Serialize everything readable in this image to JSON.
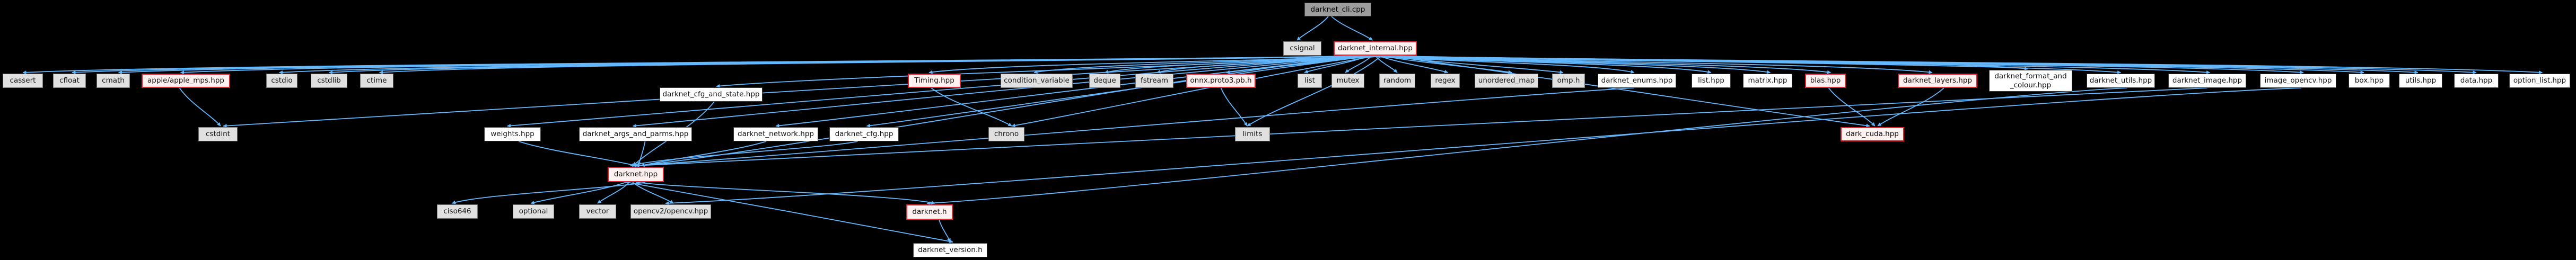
{
  "diagram": {
    "kind": "include-dependency-graph",
    "edge_color": "#63B8FF",
    "node_fill_gray": "#e0e0e0",
    "node_fill_white": "#ffffff",
    "node_fill_red": "#fff1f0",
    "node_border_red": "#e3212c",
    "title_fill": "#9c9c9c",
    "nodes": [
      {
        "label": "darknet_cli.cpp"
      },
      {
        "label": "csignal"
      },
      {
        "label": "darknet_internal.hpp"
      },
      {
        "label": "cassert"
      },
      {
        "label": "cfloat"
      },
      {
        "label": "cmath"
      },
      {
        "label": "apple/apple_mps.hpp"
      },
      {
        "label": "cstdio"
      },
      {
        "label": "cstdlib"
      },
      {
        "label": "ctime"
      },
      {
        "label": "darknet_cfg_and_state.hpp"
      },
      {
        "label": "Timing.hpp"
      },
      {
        "label": "condition_variable"
      },
      {
        "label": "deque"
      },
      {
        "label": "fstream"
      },
      {
        "label": "onnx.proto3.pb.h"
      },
      {
        "label": "list"
      },
      {
        "label": "mutex"
      },
      {
        "label": "random"
      },
      {
        "label": "regex"
      },
      {
        "label": "unordered_map"
      },
      {
        "label": "omp.h"
      },
      {
        "label": "darknet_enums.hpp"
      },
      {
        "label": "list.hpp"
      },
      {
        "label": "matrix.hpp"
      },
      {
        "label": "blas.hpp"
      },
      {
        "label": "darknet_layers.hpp"
      },
      {
        "label": "darknet_format_and\n_colour.hpp"
      },
      {
        "label": "darknet_utils.hpp"
      },
      {
        "label": "darknet_image.hpp"
      },
      {
        "label": "image_opencv.hpp"
      },
      {
        "label": "box.hpp"
      },
      {
        "label": "utils.hpp"
      },
      {
        "label": "data.hpp"
      },
      {
        "label": "option_list.hpp"
      },
      {
        "label": "cstdint"
      },
      {
        "label": "weights.hpp"
      },
      {
        "label": "darknet_args_and_parms.hpp"
      },
      {
        "label": "darknet_network.hpp"
      },
      {
        "label": "darknet_cfg.hpp"
      },
      {
        "label": "chrono"
      },
      {
        "label": "limits"
      },
      {
        "label": "dark_cuda.hpp"
      },
      {
        "label": "darknet.hpp"
      },
      {
        "label": "ciso646"
      },
      {
        "label": "optional"
      },
      {
        "label": "vector"
      },
      {
        "label": "opencv2/opencv.hpp"
      },
      {
        "label": "darknet.h"
      },
      {
        "label": "darknet_version.h"
      }
    ],
    "edges": [
      [
        0,
        1
      ],
      [
        0,
        2
      ],
      [
        2,
        3
      ],
      [
        2,
        4
      ],
      [
        2,
        5
      ],
      [
        2,
        6
      ],
      [
        2,
        7
      ],
      [
        2,
        8
      ],
      [
        2,
        9
      ],
      [
        2,
        10
      ],
      [
        2,
        11
      ],
      [
        2,
        12
      ],
      [
        2,
        13
      ],
      [
        2,
        14
      ],
      [
        2,
        15
      ],
      [
        2,
        16
      ],
      [
        2,
        17
      ],
      [
        2,
        18
      ],
      [
        2,
        19
      ],
      [
        2,
        20
      ],
      [
        2,
        21
      ],
      [
        2,
        22
      ],
      [
        2,
        23
      ],
      [
        2,
        24
      ],
      [
        2,
        25
      ],
      [
        2,
        26
      ],
      [
        2,
        27
      ],
      [
        2,
        28
      ],
      [
        2,
        29
      ],
      [
        2,
        30
      ],
      [
        2,
        31
      ],
      [
        2,
        32
      ],
      [
        2,
        33
      ],
      [
        2,
        34
      ],
      [
        2,
        35
      ],
      [
        2,
        36
      ],
      [
        2,
        37
      ],
      [
        2,
        38
      ],
      [
        2,
        39
      ],
      [
        2,
        40
      ],
      [
        2,
        41
      ],
      [
        2,
        42
      ],
      [
        2,
        43
      ],
      [
        6,
        35
      ],
      [
        11,
        40
      ],
      [
        15,
        41
      ],
      [
        10,
        43
      ],
      [
        36,
        43
      ],
      [
        37,
        43
      ],
      [
        38,
        43
      ],
      [
        39,
        43
      ],
      [
        22,
        43
      ],
      [
        29,
        43
      ],
      [
        25,
        42
      ],
      [
        26,
        42
      ],
      [
        43,
        44
      ],
      [
        43,
        45
      ],
      [
        43,
        46
      ],
      [
        43,
        47
      ],
      [
        43,
        48
      ],
      [
        30,
        47
      ],
      [
        28,
        48
      ],
      [
        48,
        49
      ],
      [
        43,
        49
      ]
    ]
  }
}
